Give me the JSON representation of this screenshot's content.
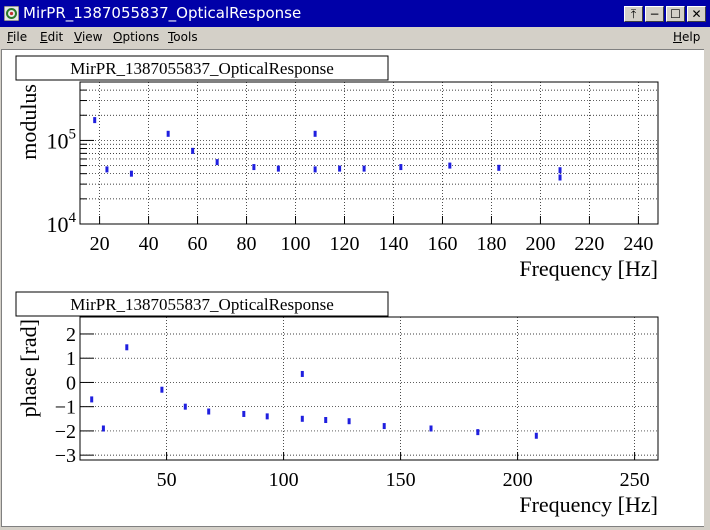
{
  "window": {
    "title": "MirPR_1387055837_OpticalResponse",
    "buttons": {
      "iconify": "⤒",
      "minimize": "−",
      "maximize": "☐",
      "close": "✕"
    }
  },
  "menu": {
    "items": [
      {
        "u": "F",
        "rest": "ile"
      },
      {
        "u": "E",
        "rest": "dit"
      },
      {
        "u": "V",
        "rest": "iew"
      },
      {
        "u": "O",
        "rest": "ptions"
      },
      {
        "u": "T",
        "rest": "ools"
      }
    ],
    "help": {
      "u": "H",
      "rest": "elp"
    }
  },
  "chart_data": [
    {
      "type": "scatter",
      "title": "MirPR_1387055837_OpticalResponse",
      "xlabel": "Frequency [Hz]",
      "ylabel": "modulus",
      "log_y": true,
      "grid": true,
      "xlim": [
        12,
        248
      ],
      "ylim": [
        10000,
        500000
      ],
      "xticks": [
        "20",
        "40",
        "60",
        "80",
        "100",
        "120",
        "140",
        "160",
        "180",
        "200",
        "220",
        "240"
      ],
      "yticks": [
        {
          "base": "10",
          "exp": "4",
          "value": 10000
        },
        {
          "base": "10",
          "exp": "5",
          "value": 100000
        }
      ],
      "x": [
        18,
        23,
        33,
        48,
        58,
        68,
        83,
        93,
        108,
        108,
        118,
        128,
        143,
        163,
        183,
        208,
        208
      ],
      "y": [
        175000,
        45000,
        40000,
        120000,
        75000,
        55000,
        48000,
        46000,
        120000,
        45000,
        46000,
        46000,
        48000,
        50000,
        47000,
        44000,
        36000
      ]
    },
    {
      "type": "scatter",
      "title": "MirPR_1387055837_OpticalResponse",
      "xlabel": "Frequency [Hz]",
      "ylabel": "phase [rad]",
      "log_y": false,
      "grid": true,
      "xlim": [
        13,
        260
      ],
      "ylim": [
        -3.2,
        2.7
      ],
      "xticks": [
        "50",
        "100",
        "150",
        "200",
        "250"
      ],
      "yticks": [
        "2",
        "1",
        "0",
        "−1",
        "−2",
        "−3"
      ],
      "x": [
        18,
        23,
        33,
        48,
        58,
        68,
        83,
        93,
        108,
        108,
        118,
        128,
        143,
        163,
        183,
        208
      ],
      "y": [
        -0.7,
        -1.9,
        1.45,
        -0.3,
        -1.0,
        -1.2,
        -1.3,
        -1.4,
        0.35,
        -1.5,
        -1.55,
        -1.6,
        -1.8,
        -1.9,
        -2.05,
        -2.2
      ]
    }
  ]
}
